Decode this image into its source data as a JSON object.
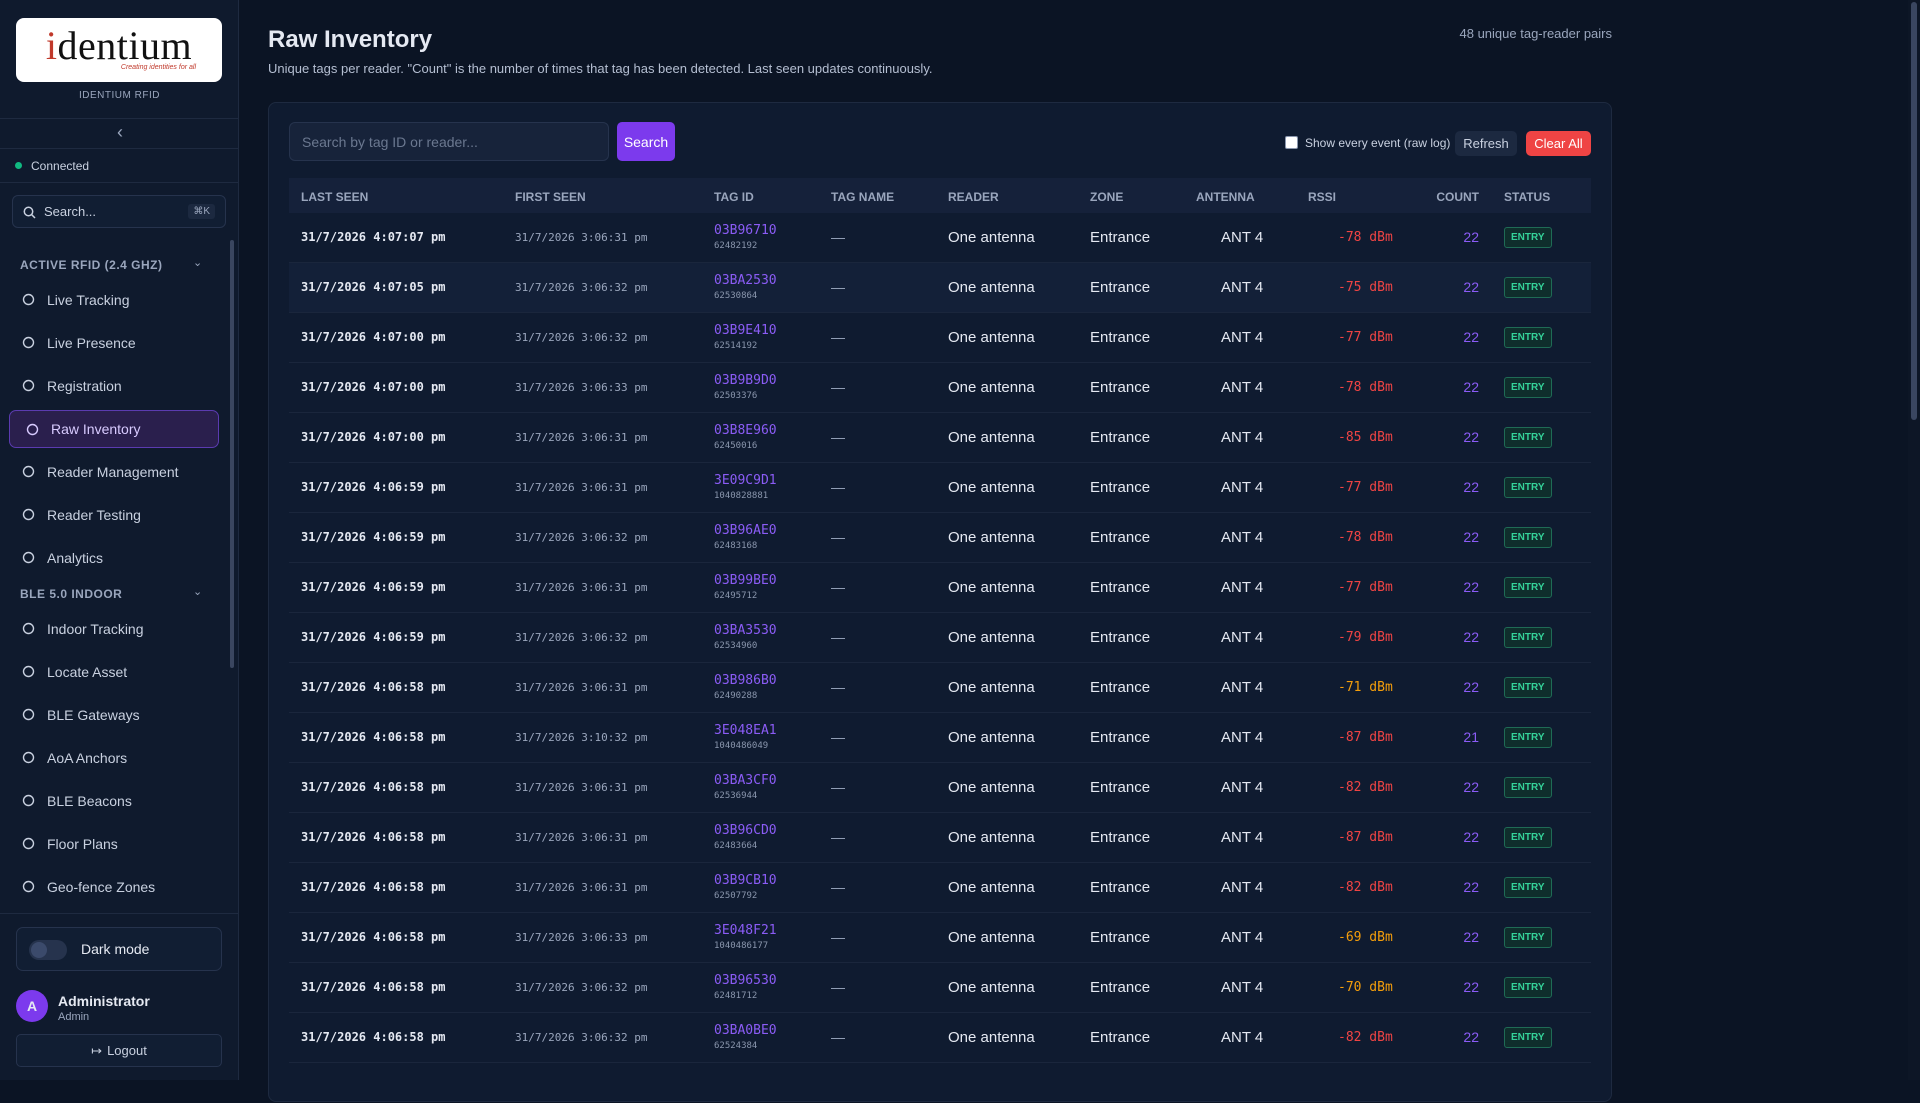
{
  "sidebar": {
    "logo": {
      "wordmark": "identium",
      "tagline": "Creating identities for all",
      "caption": "IDENTIUM RFID"
    },
    "collapse": "‹",
    "status": "Connected",
    "search": {
      "placeholder": "Search...",
      "shortcut": "⌘K"
    },
    "sections": [
      {
        "title": "ACTIVE RFID (2.4 GHZ)",
        "items": [
          {
            "label": "Live Tracking"
          },
          {
            "label": "Live Presence"
          },
          {
            "label": "Registration"
          },
          {
            "label": "Raw Inventory",
            "active": true
          },
          {
            "label": "Reader Management"
          },
          {
            "label": "Reader Testing"
          },
          {
            "label": "Analytics"
          }
        ]
      },
      {
        "title": "BLE 5.0 INDOOR",
        "items": [
          {
            "label": "Indoor Tracking"
          },
          {
            "label": "Locate Asset"
          },
          {
            "label": "BLE Gateways"
          },
          {
            "label": "AoA Anchors"
          },
          {
            "label": "BLE Beacons"
          },
          {
            "label": "Floor Plans"
          },
          {
            "label": "Geo-fence Zones"
          }
        ]
      }
    ],
    "theme": "Dark mode",
    "user": {
      "initial": "A",
      "name": "Administrator",
      "role": "Admin"
    },
    "logout": "Logout"
  },
  "header": {
    "title": "Raw Inventory",
    "subtitle": "Unique tags per reader. \"Count\" is the number of times that tag has been detected. Last seen updates continuously.",
    "summary": "48 unique tag-reader pairs"
  },
  "toolbar": {
    "search_placeholder": "Search by tag ID or reader...",
    "search_button": "Search",
    "raw_log": "Show every event (raw log)",
    "refresh": "Refresh",
    "clear": "Clear All"
  },
  "table": {
    "columns": [
      "LAST SEEN",
      "FIRST SEEN",
      "TAG ID",
      "TAG NAME",
      "READER",
      "ZONE",
      "ANTENNA",
      "RSSI",
      "COUNT",
      "STATUS"
    ],
    "rows": [
      {
        "last_seen": "31/7/2026 4:07:07 pm",
        "first_seen": "31/7/2026 3:06:31 pm",
        "tag_id": "03B96710",
        "tag_number": "62482192",
        "tag_name": "—",
        "reader": "One antenna",
        "zone": "Entrance",
        "antenna": "ANT 4",
        "rssi": "-78 dBm",
        "count": 22,
        "status": "ENTRY"
      },
      {
        "last_seen": "31/7/2026 4:07:05 pm",
        "first_seen": "31/7/2026 3:06:32 pm",
        "tag_id": "03BA2530",
        "tag_number": "62530864",
        "tag_name": "—",
        "reader": "One antenna",
        "zone": "Entrance",
        "antenna": "ANT 4",
        "rssi": "-75 dBm",
        "count": 22,
        "status": "ENTRY"
      },
      {
        "last_seen": "31/7/2026 4:07:00 pm",
        "first_seen": "31/7/2026 3:06:32 pm",
        "tag_id": "03B9E410",
        "tag_number": "62514192",
        "tag_name": "—",
        "reader": "One antenna",
        "zone": "Entrance",
        "antenna": "ANT 4",
        "rssi": "-77 dBm",
        "count": 22,
        "status": "ENTRY"
      },
      {
        "last_seen": "31/7/2026 4:07:00 pm",
        "first_seen": "31/7/2026 3:06:33 pm",
        "tag_id": "03B9B9D0",
        "tag_number": "62503376",
        "tag_name": "—",
        "reader": "One antenna",
        "zone": "Entrance",
        "antenna": "ANT 4",
        "rssi": "-78 dBm",
        "count": 22,
        "status": "ENTRY"
      },
      {
        "last_seen": "31/7/2026 4:07:00 pm",
        "first_seen": "31/7/2026 3:06:31 pm",
        "tag_id": "03B8E960",
        "tag_number": "62450016",
        "tag_name": "—",
        "reader": "One antenna",
        "zone": "Entrance",
        "antenna": "ANT 4",
        "rssi": "-85 dBm",
        "count": 22,
        "status": "ENTRY"
      },
      {
        "last_seen": "31/7/2026 4:06:59 pm",
        "first_seen": "31/7/2026 3:06:31 pm",
        "tag_id": "3E09C9D1",
        "tag_number": "1040828881",
        "tag_name": "—",
        "reader": "One antenna",
        "zone": "Entrance",
        "antenna": "ANT 4",
        "rssi": "-77 dBm",
        "count": 22,
        "status": "ENTRY"
      },
      {
        "last_seen": "31/7/2026 4:06:59 pm",
        "first_seen": "31/7/2026 3:06:32 pm",
        "tag_id": "03B96AE0",
        "tag_number": "62483168",
        "tag_name": "—",
        "reader": "One antenna",
        "zone": "Entrance",
        "antenna": "ANT 4",
        "rssi": "-78 dBm",
        "count": 22,
        "status": "ENTRY"
      },
      {
        "last_seen": "31/7/2026 4:06:59 pm",
        "first_seen": "31/7/2026 3:06:31 pm",
        "tag_id": "03B99BE0",
        "tag_number": "62495712",
        "tag_name": "—",
        "reader": "One antenna",
        "zone": "Entrance",
        "antenna": "ANT 4",
        "rssi": "-77 dBm",
        "count": 22,
        "status": "ENTRY"
      },
      {
        "last_seen": "31/7/2026 4:06:59 pm",
        "first_seen": "31/7/2026 3:06:32 pm",
        "tag_id": "03BA3530",
        "tag_number": "62534960",
        "tag_name": "—",
        "reader": "One antenna",
        "zone": "Entrance",
        "antenna": "ANT 4",
        "rssi": "-79 dBm",
        "count": 22,
        "status": "ENTRY"
      },
      {
        "last_seen": "31/7/2026 4:06:58 pm",
        "first_seen": "31/7/2026 3:06:31 pm",
        "tag_id": "03B986B0",
        "tag_number": "62490288",
        "tag_name": "—",
        "reader": "One antenna",
        "zone": "Entrance",
        "antenna": "ANT 4",
        "rssi": "-71 dBm",
        "count": 22,
        "status": "ENTRY"
      },
      {
        "last_seen": "31/7/2026 4:06:58 pm",
        "first_seen": "31/7/2026 3:10:32 pm",
        "tag_id": "3E048EA1",
        "tag_number": "1040486049",
        "tag_name": "—",
        "reader": "One antenna",
        "zone": "Entrance",
        "antenna": "ANT 4",
        "rssi": "-87 dBm",
        "count": 21,
        "status": "ENTRY"
      },
      {
        "last_seen": "31/7/2026 4:06:58 pm",
        "first_seen": "31/7/2026 3:06:31 pm",
        "tag_id": "03BA3CF0",
        "tag_number": "62536944",
        "tag_name": "—",
        "reader": "One antenna",
        "zone": "Entrance",
        "antenna": "ANT 4",
        "rssi": "-82 dBm",
        "count": 22,
        "status": "ENTRY"
      },
      {
        "last_seen": "31/7/2026 4:06:58 pm",
        "first_seen": "31/7/2026 3:06:31 pm",
        "tag_id": "03B96CD0",
        "tag_number": "62483664",
        "tag_name": "—",
        "reader": "One antenna",
        "zone": "Entrance",
        "antenna": "ANT 4",
        "rssi": "-87 dBm",
        "count": 22,
        "status": "ENTRY"
      },
      {
        "last_seen": "31/7/2026 4:06:58 pm",
        "first_seen": "31/7/2026 3:06:31 pm",
        "tag_id": "03B9CB10",
        "tag_number": "62507792",
        "tag_name": "—",
        "reader": "One antenna",
        "zone": "Entrance",
        "antenna": "ANT 4",
        "rssi": "-82 dBm",
        "count": 22,
        "status": "ENTRY"
      },
      {
        "last_seen": "31/7/2026 4:06:58 pm",
        "first_seen": "31/7/2026 3:06:33 pm",
        "tag_id": "3E048F21",
        "tag_number": "1040486177",
        "tag_name": "—",
        "reader": "One antenna",
        "zone": "Entrance",
        "antenna": "ANT 4",
        "rssi": "-69 dBm",
        "count": 22,
        "status": "ENTRY"
      },
      {
        "last_seen": "31/7/2026 4:06:58 pm",
        "first_seen": "31/7/2026 3:06:32 pm",
        "tag_id": "03B96530",
        "tag_number": "62481712",
        "tag_name": "—",
        "reader": "One antenna",
        "zone": "Entrance",
        "antenna": "ANT 4",
        "rssi": "-70 dBm",
        "count": 22,
        "status": "ENTRY"
      },
      {
        "last_seen": "31/7/2026 4:06:58 pm",
        "first_seen": "31/7/2026 3:06:32 pm",
        "tag_id": "03BA0BE0",
        "tag_number": "62524384",
        "tag_name": "—",
        "reader": "One antenna",
        "zone": "Entrance",
        "antenna": "ANT 4",
        "rssi": "-82 dBm",
        "count": 22,
        "status": "ENTRY"
      }
    ]
  }
}
